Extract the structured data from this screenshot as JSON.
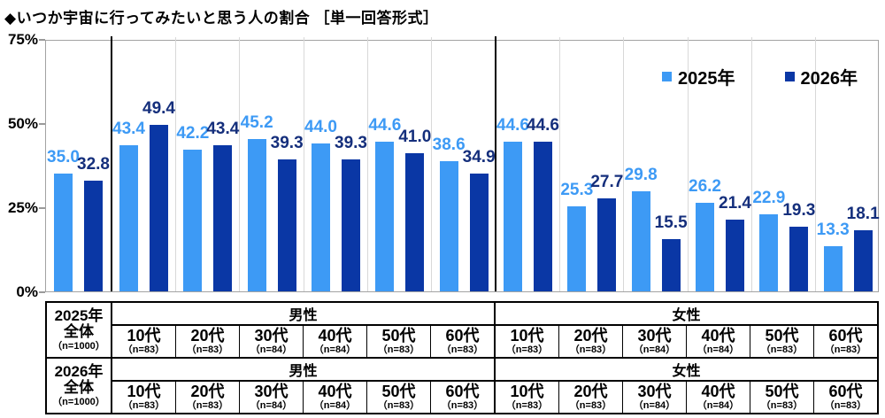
{
  "title": "◆いつか宇宙に行ってみたいと思う人の割合 ［単一回答形式］",
  "legend": [
    {
      "label": "2025年",
      "color": "#3d9af5"
    },
    {
      "label": "2026年",
      "color": "#0a37a5"
    }
  ],
  "chart_data": {
    "type": "bar",
    "title": "いつか宇宙に行ってみたいと思う人の割合",
    "categories": [
      "全体",
      "男性 10代",
      "男性 20代",
      "男性 30代",
      "男性 40代",
      "男性 50代",
      "男性 60代",
      "女性 10代",
      "女性 20代",
      "女性 30代",
      "女性 40代",
      "女性 50代",
      "女性 60代"
    ],
    "group_structure": {
      "first_band": "全体",
      "groups": [
        {
          "label": "男性",
          "bands": 6
        },
        {
          "label": "女性",
          "bands": 6
        }
      ]
    },
    "series": [
      {
        "name": "2025年",
        "color": "#3d9af5",
        "label_color": "#3d9af5",
        "values": [
          35.0,
          43.4,
          42.2,
          45.2,
          44.0,
          44.6,
          38.6,
          44.6,
          25.3,
          29.8,
          26.2,
          22.9,
          13.3
        ]
      },
      {
        "name": "2026年",
        "color": "#0a37a5",
        "label_color": "#152f7c",
        "values": [
          32.8,
          49.4,
          43.4,
          39.3,
          39.3,
          41.0,
          34.9,
          44.6,
          27.7,
          15.5,
          21.4,
          19.3,
          18.1
        ]
      }
    ],
    "xlabel": "",
    "ylabel": "",
    "ylim": [
      0,
      75
    ],
    "y_ticks": [
      {
        "label": "75%",
        "value": 75
      },
      {
        "label": "50%",
        "value": 50
      },
      {
        "label": "25%",
        "value": 25
      },
      {
        "label": "0%",
        "value": 0
      }
    ],
    "grid": "vertical band separators only",
    "legend_position": "top-right"
  },
  "table": {
    "rows": [
      {
        "year": "2025年",
        "scope": "全体",
        "n": "（n=1000）",
        "groups": [
          {
            "gender": "男性",
            "cols": [
              {
                "age": "10代",
                "n": "（n=83）"
              },
              {
                "age": "20代",
                "n": "（n=83）"
              },
              {
                "age": "30代",
                "n": "（n=84）"
              },
              {
                "age": "40代",
                "n": "（n=84）"
              },
              {
                "age": "50代",
                "n": "（n=83）"
              },
              {
                "age": "60代",
                "n": "（n=83）"
              }
            ]
          },
          {
            "gender": "女性",
            "cols": [
              {
                "age": "10代",
                "n": "（n=83）"
              },
              {
                "age": "20代",
                "n": "（n=83）"
              },
              {
                "age": "30代",
                "n": "（n=84）"
              },
              {
                "age": "40代",
                "n": "（n=84）"
              },
              {
                "age": "50代",
                "n": "（n=83）"
              },
              {
                "age": "60代",
                "n": "（n=83）"
              }
            ]
          }
        ]
      },
      {
        "year": "2026年",
        "scope": "全体",
        "n": "（n=1000）",
        "groups": [
          {
            "gender": "男性",
            "cols": [
              {
                "age": "10代",
                "n": "（n=83）"
              },
              {
                "age": "20代",
                "n": "（n=83）"
              },
              {
                "age": "30代",
                "n": "（n=84）"
              },
              {
                "age": "40代",
                "n": "（n=84）"
              },
              {
                "age": "50代",
                "n": "（n=83）"
              },
              {
                "age": "60代",
                "n": "（n=83）"
              }
            ]
          },
          {
            "gender": "女性",
            "cols": [
              {
                "age": "10代",
                "n": "（n=83）"
              },
              {
                "age": "20代",
                "n": "（n=83）"
              },
              {
                "age": "30代",
                "n": "（n=84）"
              },
              {
                "age": "40代",
                "n": "（n=84）"
              },
              {
                "age": "50代",
                "n": "（n=83）"
              },
              {
                "age": "60代",
                "n": "（n=83）"
              }
            ]
          }
        ]
      }
    ]
  }
}
